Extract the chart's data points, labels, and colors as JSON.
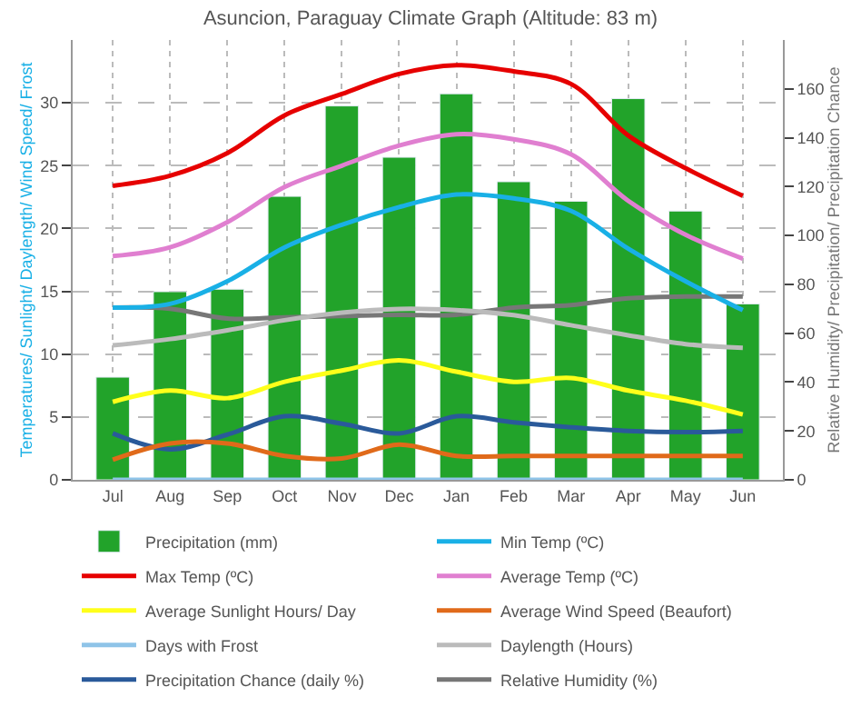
{
  "chart_data": {
    "type": "line",
    "title": "Asuncion, Paraguay Climate Graph (Altitude: 83 m)",
    "ylabel": "Temperatures/ Sunlight/ Daylength/ Wind Speed/ Frost",
    "y2label": "Relative Humidity/ Precipitation/ Precipitation Chance",
    "categories": [
      "Jul",
      "Aug",
      "Sep",
      "Oct",
      "Nov",
      "Dec",
      "Jan",
      "Feb",
      "Mar",
      "Apr",
      "May",
      "Jun"
    ],
    "ylim": [
      0,
      35
    ],
    "yticks": [
      0,
      5,
      10,
      15,
      20,
      25,
      30
    ],
    "y2lim": [
      0,
      180
    ],
    "y2ticks": [
      0,
      20,
      40,
      60,
      80,
      100,
      120,
      140,
      160
    ],
    "grid": true,
    "legend": "bottom",
    "series": [
      {
        "name": "Precipitation (mm)",
        "type": "bar",
        "axis": "y2",
        "color": "#22a32a",
        "values": [
          42,
          77,
          78,
          116,
          153,
          132,
          158,
          122,
          114,
          156,
          110,
          72
        ]
      },
      {
        "name": "Min Temp (ºC)",
        "color": "#19b0e6",
        "values": [
          13.7,
          14,
          15.8,
          18.5,
          20.3,
          21.7,
          22.7,
          22.4,
          21.4,
          18.4,
          15.8,
          13.5
        ]
      },
      {
        "name": "Max Temp (ºC)",
        "color": "#e60000",
        "values": [
          23.4,
          24.2,
          26,
          29,
          30.7,
          32.3,
          33,
          32.5,
          31.5,
          27.4,
          24.8,
          22.6
        ]
      },
      {
        "name": "Average Temp (ºC)",
        "color": "#e07fd0",
        "values": [
          17.8,
          18.5,
          20.5,
          23.3,
          25,
          26.6,
          27.5,
          27.1,
          25.9,
          22.2,
          19.5,
          17.6
        ]
      },
      {
        "name": "Average Sunlight Hours/ Day",
        "color": "#ffff1a",
        "values": [
          6.2,
          7.1,
          6.5,
          7.8,
          8.7,
          9.5,
          8.6,
          7.8,
          8.1,
          7.1,
          6.3,
          5.2
        ]
      },
      {
        "name": "Average Wind Speed (Beaufort)",
        "color": "#e06a1a",
        "values": [
          1.6,
          2.9,
          2.9,
          1.9,
          1.7,
          2.8,
          1.9,
          1.9,
          1.9,
          1.9,
          1.9,
          1.9
        ]
      },
      {
        "name": "Days with Frost",
        "color": "#8fc4e8",
        "values": [
          0,
          0,
          0,
          0,
          0,
          0,
          0,
          0,
          0,
          0,
          0,
          0
        ]
      },
      {
        "name": "Daylength (Hours)",
        "color": "#bbbbbb",
        "values": [
          10.7,
          11.2,
          11.9,
          12.7,
          13.3,
          13.6,
          13.5,
          13.1,
          12.3,
          11.5,
          10.8,
          10.5
        ]
      },
      {
        "name": "Precipitation Chance (daily %)",
        "axis": "y2",
        "color": "#2a5a9a",
        "values": [
          19,
          12.5,
          18.5,
          26,
          23,
          19,
          26,
          23.5,
          21.5,
          20,
          19.5,
          20
        ]
      },
      {
        "name": "Relative Humidity (%)",
        "axis": "y2",
        "color": "#777777",
        "values": [
          70.5,
          70,
          66,
          66.5,
          67,
          67.5,
          67.5,
          70.5,
          71.5,
          74.3,
          75,
          75
        ]
      }
    ]
  }
}
